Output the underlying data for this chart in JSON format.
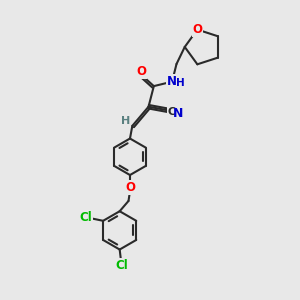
{
  "bg_color": "#e8e8e8",
  "bond_color": "#2a2a2a",
  "bond_width": 1.5,
  "atom_colors": {
    "O": "#ff0000",
    "N": "#0000cc",
    "Cl": "#00bb00",
    "C": "#2a2a2a",
    "H": "#5a8080"
  },
  "font_size": 8.5,
  "scale": 1.0
}
